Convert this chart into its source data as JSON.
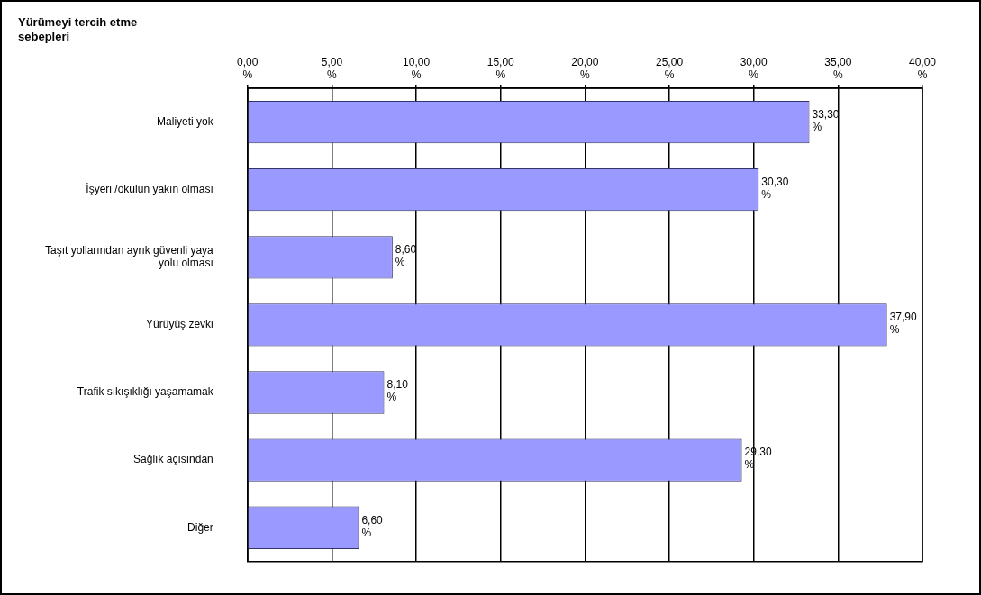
{
  "chart_data": {
    "type": "bar",
    "orientation": "horizontal",
    "title": "Yürümeyi tercih etme sebepleri",
    "categories": [
      "Maliyeti yok",
      "İşyeri /okulun yakın olması",
      "Taşıt yollarından ayrık güvenli yaya yolu olması",
      "Yürüyüş zevki",
      "Trafik sıkışıklığı yaşamamak",
      "Sağlık açısından",
      "Diğer"
    ],
    "values": [
      33.3,
      30.3,
      8.6,
      37.9,
      8.1,
      29.3,
      6.6
    ],
    "value_labels": [
      "33,30 %",
      "30,30 %",
      "8,60 %",
      "37,90 %",
      "8,10 %",
      "29,30 %",
      "6,60 %"
    ],
    "color": "#9999ff",
    "xlim": [
      0,
      40
    ],
    "xticks": [
      {
        "value": 0,
        "label": "0,00 %"
      },
      {
        "value": 5,
        "label": "5,00 %"
      },
      {
        "value": 10,
        "label": "10,00 %"
      },
      {
        "value": 15,
        "label": "15,00 %"
      },
      {
        "value": 20,
        "label": "20,00 %"
      },
      {
        "value": 25,
        "label": "25,00 %"
      },
      {
        "value": 30,
        "label": "30,00 %"
      },
      {
        "value": 35,
        "label": "35,00 %"
      },
      {
        "value": 40,
        "label": "40,00 %"
      }
    ],
    "grid": "x",
    "legend": false
  }
}
